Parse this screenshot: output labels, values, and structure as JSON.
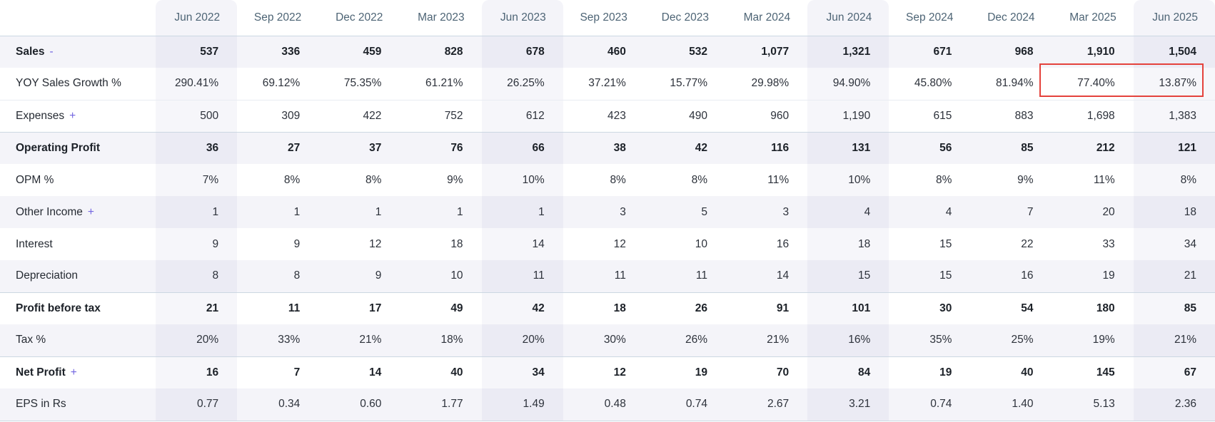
{
  "table": {
    "columns": [
      "Jun 2022",
      "Sep 2022",
      "Dec 2022",
      "Mar 2023",
      "Jun 2023",
      "Sep 2023",
      "Dec 2023",
      "Mar 2024",
      "Jun 2024",
      "Sep 2024",
      "Dec 2024",
      "Mar 2025",
      "Jun 2025"
    ],
    "highlight_columns": [
      "Jun 2022",
      "Jun 2023",
      "Jun 2024",
      "Jun 2025"
    ],
    "rows": [
      {
        "label": "Sales",
        "expand": "-",
        "strong": true,
        "striped": true,
        "values": [
          "537",
          "336",
          "459",
          "828",
          "678",
          "460",
          "532",
          "1,077",
          "1,321",
          "671",
          "968",
          "1,910",
          "1,504"
        ]
      },
      {
        "label": "YOY Sales Growth %",
        "expand": null,
        "strong": false,
        "striped": false,
        "values": [
          "290.41%",
          "69.12%",
          "75.35%",
          "61.21%",
          "26.25%",
          "37.21%",
          "15.77%",
          "29.98%",
          "94.90%",
          "45.80%",
          "81.94%",
          "77.40%",
          "13.87%"
        ]
      },
      {
        "label": "Expenses",
        "expand": "+",
        "strong": false,
        "striped": false,
        "values": [
          "500",
          "309",
          "422",
          "752",
          "612",
          "423",
          "490",
          "960",
          "1,190",
          "615",
          "883",
          "1,698",
          "1,383"
        ]
      },
      {
        "label": "Operating Profit",
        "expand": null,
        "strong": true,
        "striped": true,
        "values": [
          "36",
          "27",
          "37",
          "76",
          "66",
          "38",
          "42",
          "116",
          "131",
          "56",
          "85",
          "212",
          "121"
        ]
      },
      {
        "label": "OPM %",
        "expand": null,
        "strong": false,
        "striped": false,
        "values": [
          "7%",
          "8%",
          "8%",
          "9%",
          "10%",
          "8%",
          "8%",
          "11%",
          "10%",
          "8%",
          "9%",
          "11%",
          "8%"
        ]
      },
      {
        "label": "Other Income",
        "expand": "+",
        "strong": false,
        "striped": true,
        "values": [
          "1",
          "1",
          "1",
          "1",
          "1",
          "3",
          "5",
          "3",
          "4",
          "4",
          "7",
          "20",
          "18"
        ]
      },
      {
        "label": "Interest",
        "expand": null,
        "strong": false,
        "striped": false,
        "values": [
          "9",
          "9",
          "12",
          "18",
          "14",
          "12",
          "10",
          "16",
          "18",
          "15",
          "22",
          "33",
          "34"
        ]
      },
      {
        "label": "Depreciation",
        "expand": null,
        "strong": false,
        "striped": true,
        "values": [
          "8",
          "8",
          "9",
          "10",
          "11",
          "11",
          "11",
          "14",
          "15",
          "15",
          "16",
          "19",
          "21"
        ]
      },
      {
        "label": "Profit before tax",
        "expand": null,
        "strong": true,
        "striped": false,
        "values": [
          "21",
          "11",
          "17",
          "49",
          "42",
          "18",
          "26",
          "91",
          "101",
          "30",
          "54",
          "180",
          "85"
        ]
      },
      {
        "label": "Tax %",
        "expand": null,
        "strong": false,
        "striped": true,
        "values": [
          "20%",
          "33%",
          "21%",
          "18%",
          "20%",
          "30%",
          "26%",
          "21%",
          "16%",
          "35%",
          "25%",
          "19%",
          "21%"
        ]
      },
      {
        "label": "Net Profit",
        "expand": "+",
        "strong": true,
        "striped": false,
        "values": [
          "16",
          "7",
          "14",
          "40",
          "34",
          "12",
          "19",
          "70",
          "84",
          "19",
          "40",
          "145",
          "67"
        ]
      },
      {
        "label": "EPS in Rs",
        "expand": null,
        "strong": false,
        "striped": true,
        "values": [
          "0.77",
          "0.34",
          "0.60",
          "1.77",
          "1.49",
          "0.48",
          "0.74",
          "2.67",
          "3.21",
          "0.74",
          "1.40",
          "5.13",
          "2.36"
        ]
      }
    ],
    "annotation": {
      "row_label": "YOY Sales Growth %",
      "start_column": "Mar 2025",
      "end_column": "Jun 2025",
      "boxed_values": [
        "77.40%",
        "13.87%"
      ]
    }
  },
  "colors": {
    "accent": "#7265e0",
    "annotation": "#e4423c",
    "header_text": "#4d6475",
    "stripe": "#f4f4f9",
    "border_strong": "#ccd8e2",
    "highlight_column_overlay": "rgba(98,98,160,0.055)"
  }
}
